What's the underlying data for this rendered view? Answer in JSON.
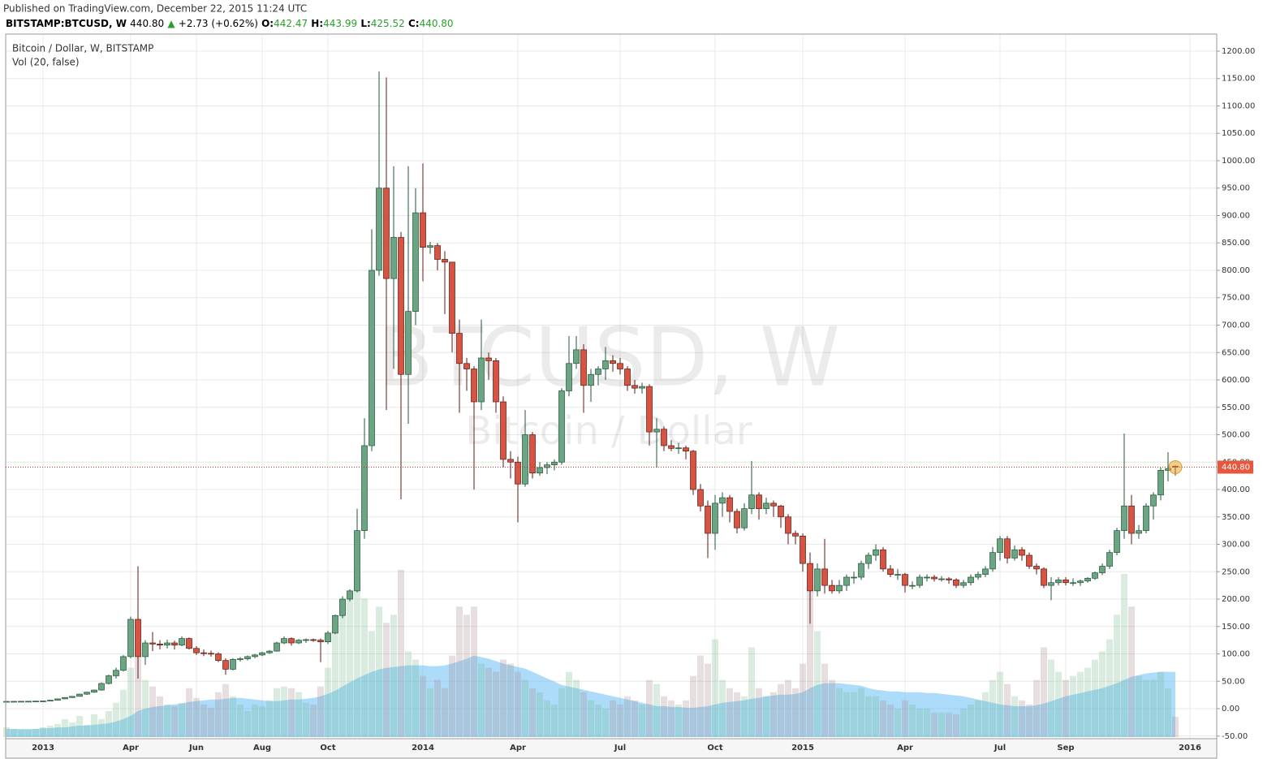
{
  "header": {
    "published": "Published on TradingView.com, December 22, 2015 11:24 UTC",
    "symbol": "BITSTAMP:BTCUSD, W",
    "last": "440.80",
    "arrow": "▲",
    "change": "+2.73 (+0.62%)",
    "open_label": "O:",
    "open": "442.47",
    "high_label": "H:",
    "high": "443.99",
    "low_label": "L:",
    "low": "425.52",
    "close_label": "C:",
    "close": "440.80"
  },
  "chart_data": {
    "type": "candlestick",
    "title": "Bitcoin / Dollar, W, BITSTAMP",
    "indicator": "Vol (20, false)",
    "watermark": "BTCUSD, W",
    "watermark_sub": "Bitcoin / Dollar",
    "up_color": "#6ba583",
    "up_border": "#225437",
    "down_color": "#d75442",
    "down_border": "#5b1a13",
    "volume_up_color": "rgba(107,180,131,0.25)",
    "volume_down_color": "rgba(170,140,140,0.28)",
    "volume_ma_color": "rgba(90,185,245,0.5)",
    "grid": true,
    "ylim": [
      -54.8,
      1231.1
    ],
    "yticks": [
      {
        "value": -50,
        "label": "-50.00"
      },
      {
        "value": 0,
        "label": "0.00"
      },
      {
        "value": 50,
        "label": "50.00"
      },
      {
        "value": 100,
        "label": "100.00"
      },
      {
        "value": 150,
        "label": "150.00"
      },
      {
        "value": 200,
        "label": "200.00"
      },
      {
        "value": 250,
        "label": "250.00"
      },
      {
        "value": 300,
        "label": "300.00"
      },
      {
        "value": 350,
        "label": "350.00"
      },
      {
        "value": 400,
        "label": "400.00"
      },
      {
        "value": 450,
        "label": "450.00"
      },
      {
        "value": 500,
        "label": "500.00"
      },
      {
        "value": 550,
        "label": "550.00"
      },
      {
        "value": 600,
        "label": "600.00"
      },
      {
        "value": 650,
        "label": "650.00"
      },
      {
        "value": 700,
        "label": "700.00"
      },
      {
        "value": 750,
        "label": "750.00"
      },
      {
        "value": 800,
        "label": "800.00"
      },
      {
        "value": 850,
        "label": "850.00"
      },
      {
        "value": 900,
        "label": "900.00"
      },
      {
        "value": 950,
        "label": "950.00"
      },
      {
        "value": 1000,
        "label": "1000.00"
      },
      {
        "value": 1050,
        "label": "1050.00"
      },
      {
        "value": 1100,
        "label": "1100.00"
      },
      {
        "value": 1150,
        "label": "1150.00"
      },
      {
        "value": 1200,
        "label": "1200.00"
      }
    ],
    "last_price": {
      "value": 440.8,
      "label": "440.80"
    },
    "categories": [
      null,
      null,
      null,
      null,
      null,
      "2013",
      null,
      null,
      null,
      null,
      null,
      null,
      null,
      null,
      null,
      null,
      null,
      "Apr",
      null,
      null,
      null,
      null,
      null,
      null,
      null,
      null,
      "Jun",
      null,
      null,
      null,
      null,
      null,
      null,
      null,
      null,
      "Aug",
      null,
      null,
      null,
      null,
      null,
      null,
      null,
      null,
      "Oct",
      null,
      null,
      null,
      null,
      null,
      null,
      null,
      null,
      null,
      null,
      null,
      null,
      "2014",
      null,
      null,
      null,
      null,
      null,
      null,
      null,
      null,
      null,
      null,
      null,
      null,
      "Apr",
      null,
      null,
      null,
      null,
      null,
      null,
      null,
      null,
      null,
      null,
      null,
      null,
      null,
      "Jul",
      null,
      null,
      null,
      null,
      null,
      null,
      null,
      null,
      null,
      null,
      null,
      null,
      "Oct",
      null,
      null,
      null,
      null,
      null,
      null,
      null,
      null,
      null,
      null,
      null,
      "2015",
      null,
      null,
      null,
      null,
      null,
      null,
      null,
      null,
      null,
      null,
      null,
      null,
      null,
      "Apr",
      null,
      null,
      null,
      null,
      null,
      null,
      null,
      null,
      null,
      null,
      null,
      null,
      "Jul",
      null,
      null,
      null,
      null,
      null,
      null,
      null,
      null,
      "Sep",
      null,
      null,
      null,
      null,
      null,
      null,
      null,
      null,
      null,
      null,
      null,
      null,
      null,
      null,
      null,
      null,
      "2016"
    ],
    "ohlc": [
      [
        13.2,
        13.6,
        13.0,
        13.3
      ],
      [
        13.3,
        13.6,
        13.1,
        13.4
      ],
      [
        13.4,
        13.8,
        13.2,
        13.5
      ],
      [
        13.5,
        14.0,
        13.3,
        13.6
      ],
      [
        13.6,
        14.2,
        13.4,
        13.8
      ],
      [
        13.8,
        14.5,
        13.6,
        14.1
      ],
      [
        14.1,
        16,
        14,
        15.5
      ],
      [
        15.5,
        18.5,
        15.3,
        17.9
      ],
      [
        17.9,
        21,
        17.5,
        20.4
      ],
      [
        20.4,
        23,
        19.5,
        22.5
      ],
      [
        22.5,
        27.5,
        22,
        26.5
      ],
      [
        26.5,
        31,
        25,
        30
      ],
      [
        30,
        35,
        29,
        34
      ],
      [
        34,
        48,
        33,
        46
      ],
      [
        46,
        62,
        44,
        60
      ],
      [
        60,
        75,
        55,
        70
      ],
      [
        70,
        98,
        68,
        95
      ],
      [
        95,
        168,
        92,
        163
      ],
      [
        163,
        260,
        55,
        95
      ],
      [
        95,
        125,
        80,
        120
      ],
      [
        120,
        140,
        105,
        118
      ],
      [
        118,
        125,
        108,
        116
      ],
      [
        116,
        126,
        110,
        120
      ],
      [
        120,
        124,
        108,
        116
      ],
      [
        116,
        132,
        114,
        128
      ],
      [
        128,
        130,
        108,
        110
      ],
      [
        110,
        114,
        98,
        102
      ],
      [
        102,
        108,
        96,
        101
      ],
      [
        101,
        106,
        95,
        100
      ],
      [
        100,
        103,
        85,
        88
      ],
      [
        88,
        92,
        62,
        72
      ],
      [
        72,
        92,
        70,
        90
      ],
      [
        90,
        94,
        86,
        91
      ],
      [
        91,
        97,
        88,
        95
      ],
      [
        95,
        100,
        92,
        98
      ],
      [
        98,
        104,
        96,
        102
      ],
      [
        102,
        107,
        100,
        105
      ],
      [
        105,
        122,
        104,
        120
      ],
      [
        120,
        132,
        118,
        128
      ],
      [
        128,
        130,
        115,
        120
      ],
      [
        120,
        127,
        118,
        125
      ],
      [
        125,
        128,
        120,
        126
      ],
      [
        126,
        128,
        122,
        125
      ],
      [
        125,
        128,
        85,
        122
      ],
      [
        122,
        142,
        118,
        138
      ],
      [
        138,
        172,
        136,
        170
      ],
      [
        170,
        205,
        165,
        200
      ],
      [
        200,
        218,
        196,
        215
      ],
      [
        215,
        365,
        212,
        325
      ],
      [
        325,
        530,
        310,
        480
      ],
      [
        480,
        875,
        470,
        800
      ],
      [
        800,
        1163,
        790,
        950
      ],
      [
        950,
        1152,
        545,
        785
      ],
      [
        785,
        990,
        620,
        860
      ],
      [
        860,
        870,
        382,
        610
      ],
      [
        610,
        990,
        520,
        725
      ],
      [
        725,
        950,
        700,
        905
      ],
      [
        905,
        995,
        780,
        842
      ],
      [
        842,
        852,
        830,
        845
      ],
      [
        845,
        850,
        800,
        820
      ],
      [
        820,
        835,
        720,
        815
      ],
      [
        815,
        815,
        650,
        685
      ],
      [
        685,
        710,
        540,
        630
      ],
      [
        630,
        640,
        580,
        620
      ],
      [
        620,
        625,
        400,
        560
      ],
      [
        560,
        710,
        545,
        640
      ],
      [
        640,
        650,
        600,
        635
      ],
      [
        635,
        640,
        540,
        560
      ],
      [
        560,
        570,
        440,
        455
      ],
      [
        455,
        470,
        420,
        450
      ],
      [
        450,
        460,
        340,
        410
      ],
      [
        410,
        545,
        405,
        500
      ],
      [
        500,
        505,
        420,
        430
      ],
      [
        430,
        450,
        425,
        440
      ],
      [
        440,
        450,
        428,
        445
      ],
      [
        445,
        455,
        435,
        450
      ],
      [
        450,
        585,
        445,
        580
      ],
      [
        580,
        680,
        570,
        630
      ],
      [
        630,
        680,
        620,
        655
      ],
      [
        655,
        665,
        540,
        590
      ],
      [
        590,
        620,
        560,
        610
      ],
      [
        610,
        625,
        590,
        620
      ],
      [
        620,
        660,
        600,
        635
      ],
      [
        635,
        645,
        615,
        630
      ],
      [
        630,
        640,
        610,
        620
      ],
      [
        620,
        625,
        580,
        590
      ],
      [
        590,
        600,
        575,
        585
      ],
      [
        585,
        595,
        575,
        588
      ],
      [
        588,
        592,
        480,
        505
      ],
      [
        505,
        530,
        440,
        510
      ],
      [
        510,
        515,
        470,
        480
      ],
      [
        480,
        490,
        470,
        475
      ],
      [
        475,
        485,
        465,
        476
      ],
      [
        476,
        480,
        455,
        470
      ],
      [
        470,
        472,
        390,
        400
      ],
      [
        400,
        410,
        360,
        370
      ],
      [
        370,
        380,
        275,
        320
      ],
      [
        320,
        390,
        290,
        375
      ],
      [
        375,
        395,
        350,
        385
      ],
      [
        385,
        390,
        340,
        360
      ],
      [
        360,
        365,
        320,
        330
      ],
      [
        330,
        375,
        325,
        365
      ],
      [
        365,
        452,
        355,
        390
      ],
      [
        390,
        395,
        345,
        365
      ],
      [
        365,
        385,
        355,
        375
      ],
      [
        375,
        380,
        350,
        370
      ],
      [
        370,
        372,
        330,
        350
      ],
      [
        350,
        355,
        300,
        320
      ],
      [
        320,
        325,
        300,
        315
      ],
      [
        315,
        320,
        250,
        265
      ],
      [
        265,
        285,
        155,
        215
      ],
      [
        215,
        265,
        205,
        255
      ],
      [
        255,
        310,
        210,
        225
      ],
      [
        225,
        235,
        210,
        215
      ],
      [
        215,
        235,
        210,
        225
      ],
      [
        225,
        245,
        215,
        240
      ],
      [
        240,
        250,
        228,
        240
      ],
      [
        240,
        270,
        235,
        265
      ],
      [
        265,
        285,
        255,
        280
      ],
      [
        280,
        300,
        270,
        290
      ],
      [
        290,
        295,
        250,
        255
      ],
      [
        255,
        262,
        240,
        245
      ],
      [
        245,
        255,
        235,
        245
      ],
      [
        245,
        248,
        212,
        225
      ],
      [
        225,
        232,
        218,
        225
      ],
      [
        225,
        245,
        220,
        240
      ],
      [
        240,
        245,
        232,
        240
      ],
      [
        240,
        244,
        232,
        237
      ],
      [
        237,
        242,
        232,
        237
      ],
      [
        237,
        240,
        228,
        235
      ],
      [
        235,
        238,
        220,
        225
      ],
      [
        225,
        235,
        220,
        230
      ],
      [
        230,
        245,
        225,
        240
      ],
      [
        240,
        250,
        235,
        245
      ],
      [
        245,
        260,
        240,
        255
      ],
      [
        255,
        295,
        250,
        285
      ],
      [
        285,
        315,
        270,
        310
      ],
      [
        310,
        315,
        265,
        275
      ],
      [
        275,
        298,
        270,
        290
      ],
      [
        290,
        295,
        270,
        280
      ],
      [
        280,
        285,
        255,
        260
      ],
      [
        260,
        265,
        245,
        255
      ],
      [
        255,
        258,
        220,
        225
      ],
      [
        225,
        240,
        198,
        230
      ],
      [
        230,
        240,
        225,
        235
      ],
      [
        235,
        240,
        225,
        230
      ],
      [
        230,
        238,
        224,
        230
      ],
      [
        230,
        236,
        224,
        233
      ],
      [
        233,
        240,
        230,
        238
      ],
      [
        238,
        250,
        235,
        248
      ],
      [
        248,
        265,
        244,
        260
      ],
      [
        260,
        290,
        255,
        285
      ],
      [
        285,
        330,
        280,
        325
      ],
      [
        325,
        502,
        310,
        370
      ],
      [
        370,
        390,
        300,
        320
      ],
      [
        320,
        335,
        310,
        325
      ],
      [
        325,
        375,
        320,
        370
      ],
      [
        370,
        395,
        345,
        390
      ],
      [
        390,
        440,
        380,
        435
      ],
      [
        435,
        468,
        415,
        438.07
      ],
      [
        442.47,
        443.99,
        425.52,
        440.8
      ],
      null,
      null
    ],
    "volume": [
      12,
      10,
      9,
      9,
      10,
      12,
      14,
      16,
      22,
      18,
      26,
      15,
      28,
      22,
      32,
      42,
      58,
      85,
      140,
      70,
      62,
      50,
      40,
      38,
      42,
      60,
      48,
      40,
      36,
      55,
      65,
      50,
      40,
      32,
      40,
      38,
      45,
      60,
      62,
      60,
      55,
      42,
      40,
      62,
      85,
      130,
      165,
      175,
      200,
      170,
      130,
      160,
      140,
      150,
      205,
      105,
      95,
      75,
      60,
      70,
      60,
      100,
      160,
      150,
      160,
      90,
      85,
      80,
      95,
      90,
      80,
      70,
      60,
      55,
      45,
      40,
      60,
      80,
      70,
      55,
      45,
      40,
      35,
      45,
      40,
      50,
      45,
      40,
      70,
      65,
      50,
      45,
      40,
      45,
      75,
      100,
      90,
      120,
      70,
      60,
      55,
      50,
      110,
      60,
      50,
      55,
      65,
      70,
      60,
      90,
      205,
      130,
      90,
      70,
      60,
      55,
      55,
      60,
      50,
      50,
      45,
      40,
      35,
      45,
      40,
      35,
      35,
      30,
      30,
      30,
      28,
      35,
      40,
      45,
      55,
      70,
      80,
      65,
      50,
      45,
      40,
      70,
      110,
      95,
      80,
      70,
      75,
      80,
      85,
      95,
      105,
      120,
      150,
      200,
      160,
      75,
      70,
      70,
      80,
      60,
      25,
      null,
      null
    ],
    "volume_ma": [
      10,
      10,
      10,
      10,
      10,
      11,
      11,
      12,
      12,
      13,
      14,
      14,
      15,
      16,
      17,
      19,
      22,
      26,
      32,
      35,
      37,
      38,
      39,
      40,
      41,
      43,
      44,
      45,
      46,
      46,
      47,
      48,
      48,
      47,
      46,
      45,
      44,
      44,
      45,
      46,
      46,
      47,
      48,
      50,
      53,
      57,
      62,
      67,
      72,
      76,
      80,
      83,
      85,
      86,
      87,
      88,
      88,
      88,
      87,
      87,
      88,
      90,
      93,
      96,
      100,
      98,
      96,
      93,
      90,
      88,
      86,
      84,
      80,
      76,
      72,
      68,
      64,
      62,
      60,
      58,
      56,
      54,
      52,
      50,
      48,
      46,
      44,
      42,
      40,
      38,
      38,
      37,
      37,
      36,
      36,
      37,
      38,
      40,
      42,
      43,
      44,
      45,
      47,
      48,
      50,
      51,
      52,
      52,
      53,
      55,
      60,
      64,
      66,
      66,
      66,
      65,
      64,
      63,
      60,
      58,
      57,
      56,
      56,
      55,
      55,
      55,
      54,
      54,
      53,
      52,
      51,
      50,
      48,
      46,
      44,
      42,
      40,
      39,
      38,
      38,
      38,
      39,
      41,
      44,
      47,
      50,
      52,
      54,
      56,
      58,
      60,
      63,
      66,
      70,
      74,
      76,
      78,
      79,
      80,
      80,
      80,
      null,
      null
    ]
  }
}
